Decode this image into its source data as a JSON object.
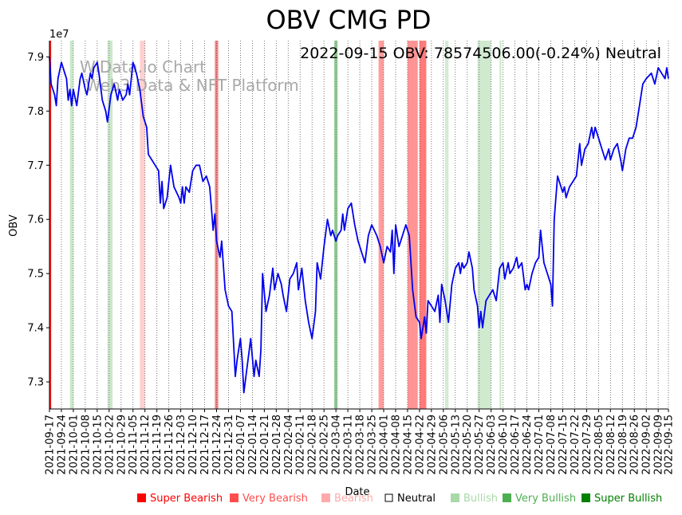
{
  "chart_data": {
    "type": "line",
    "title": "OBV CMG PD",
    "xlabel": "Date",
    "ylabel": "OBV",
    "y_offset_label": "1e7",
    "annotation": "2022-09-15 OBV: 78574506.00(-0.24%) Neutral",
    "watermark_lines": [
      "WiData.io Chart",
      "Web3 Data & NFT Platform"
    ],
    "grid": "vertical dotted",
    "ylim": [
      7.25,
      7.93
    ],
    "yticks": [
      7.3,
      7.4,
      7.5,
      7.6,
      7.7,
      7.8,
      7.9
    ],
    "xlim": [
      "2021-09-17",
      "2022-09-15"
    ],
    "xticks": [
      "2021-09-17",
      "2021-09-24",
      "2021-10-01",
      "2021-10-08",
      "2021-10-15",
      "2021-10-22",
      "2021-10-29",
      "2021-11-05",
      "2021-11-12",
      "2021-11-19",
      "2021-11-26",
      "2021-12-03",
      "2021-12-10",
      "2021-12-17",
      "2021-12-24",
      "2021-12-31",
      "2022-01-07",
      "2022-01-14",
      "2022-01-21",
      "2022-01-28",
      "2022-02-04",
      "2022-02-11",
      "2022-02-18",
      "2022-02-25",
      "2022-03-04",
      "2022-03-11",
      "2022-03-18",
      "2022-03-25",
      "2022-04-01",
      "2022-04-08",
      "2022-04-15",
      "2022-04-22",
      "2022-04-29",
      "2022-05-06",
      "2022-05-13",
      "2022-05-20",
      "2022-05-27",
      "2022-06-03",
      "2022-06-10",
      "2022-06-17",
      "2022-06-24",
      "2022-07-01",
      "2022-07-08",
      "2022-07-15",
      "2022-07-22",
      "2022-07-29",
      "2022-08-05",
      "2022-08-12",
      "2022-08-19",
      "2022-08-26",
      "2022-09-02",
      "2022-09-09",
      "2022-09-15"
    ],
    "series": [
      {
        "color": "#0000ee",
        "points": [
          [
            "2021-09-17",
            7.9
          ],
          [
            "2021-09-18",
            7.85
          ],
          [
            "2021-09-20",
            7.83
          ],
          [
            "2021-09-21",
            7.81
          ],
          [
            "2021-09-22",
            7.86
          ],
          [
            "2021-09-24",
            7.89
          ],
          [
            "2021-09-26",
            7.87
          ],
          [
            "2021-09-27",
            7.86
          ],
          [
            "2021-09-28",
            7.82
          ],
          [
            "2021-09-29",
            7.84
          ],
          [
            "2021-09-30",
            7.81
          ],
          [
            "2021-10-01",
            7.84
          ],
          [
            "2021-10-03",
            7.81
          ],
          [
            "2021-10-05",
            7.86
          ],
          [
            "2021-10-06",
            7.87
          ],
          [
            "2021-10-08",
            7.84
          ],
          [
            "2021-10-09",
            7.83
          ],
          [
            "2021-10-11",
            7.87
          ],
          [
            "2021-10-12",
            7.86
          ],
          [
            "2021-10-13",
            7.88
          ],
          [
            "2021-10-15",
            7.89
          ],
          [
            "2021-10-16",
            7.87
          ],
          [
            "2021-10-18",
            7.82
          ],
          [
            "2021-10-20",
            7.8
          ],
          [
            "2021-10-21",
            7.78
          ],
          [
            "2021-10-23",
            7.83
          ],
          [
            "2021-10-25",
            7.85
          ],
          [
            "2021-10-27",
            7.82
          ],
          [
            "2021-10-28",
            7.84
          ],
          [
            "2021-10-30",
            7.82
          ],
          [
            "2021-11-01",
            7.83
          ],
          [
            "2021-11-02",
            7.85
          ],
          [
            "2021-11-03",
            7.83
          ],
          [
            "2021-11-05",
            7.89
          ],
          [
            "2021-11-07",
            7.87
          ],
          [
            "2021-11-09",
            7.84
          ],
          [
            "2021-11-11",
            7.79
          ],
          [
            "2021-11-13",
            7.77
          ],
          [
            "2021-11-14",
            7.72
          ],
          [
            "2021-11-16",
            7.71
          ],
          [
            "2021-11-18",
            7.7
          ],
          [
            "2021-11-20",
            7.69
          ],
          [
            "2021-11-21",
            7.63
          ],
          [
            "2021-11-22",
            7.67
          ],
          [
            "2021-11-23",
            7.62
          ],
          [
            "2021-11-25",
            7.64
          ],
          [
            "2021-11-27",
            7.7
          ],
          [
            "2021-11-29",
            7.66
          ],
          [
            "2021-12-02",
            7.64
          ],
          [
            "2021-12-03",
            7.63
          ],
          [
            "2021-12-04",
            7.66
          ],
          [
            "2021-12-05",
            7.63
          ],
          [
            "2021-12-06",
            7.66
          ],
          [
            "2021-12-08",
            7.65
          ],
          [
            "2021-12-10",
            7.69
          ],
          [
            "2021-12-12",
            7.7
          ],
          [
            "2021-12-14",
            7.7
          ],
          [
            "2021-12-16",
            7.67
          ],
          [
            "2021-12-18",
            7.68
          ],
          [
            "2021-12-20",
            7.66
          ],
          [
            "2021-12-21",
            7.62
          ],
          [
            "2021-12-22",
            7.58
          ],
          [
            "2021-12-23",
            7.61
          ],
          [
            "2021-12-24",
            7.56
          ],
          [
            "2021-12-26",
            7.53
          ],
          [
            "2021-12-27",
            7.56
          ],
          [
            "2021-12-29",
            7.47
          ],
          [
            "2021-12-31",
            7.44
          ],
          [
            "2022-01-02",
            7.43
          ],
          [
            "2022-01-03",
            7.37
          ],
          [
            "2022-01-04",
            7.31
          ],
          [
            "2022-01-05",
            7.34
          ],
          [
            "2022-01-07",
            7.38
          ],
          [
            "2022-01-08",
            7.34
          ],
          [
            "2022-01-09",
            7.28
          ],
          [
            "2022-01-11",
            7.33
          ],
          [
            "2022-01-13",
            7.38
          ],
          [
            "2022-01-15",
            7.31
          ],
          [
            "2022-01-16",
            7.34
          ],
          [
            "2022-01-18",
            7.31
          ],
          [
            "2022-01-19",
            7.36
          ],
          [
            "2022-01-20",
            7.5
          ],
          [
            "2022-01-22",
            7.43
          ],
          [
            "2022-01-24",
            7.46
          ],
          [
            "2022-01-26",
            7.51
          ],
          [
            "2022-01-27",
            7.47
          ],
          [
            "2022-01-29",
            7.5
          ],
          [
            "2022-01-31",
            7.48
          ],
          [
            "2022-02-01",
            7.46
          ],
          [
            "2022-02-03",
            7.43
          ],
          [
            "2022-02-05",
            7.49
          ],
          [
            "2022-02-07",
            7.5
          ],
          [
            "2022-02-09",
            7.52
          ],
          [
            "2022-02-10",
            7.47
          ],
          [
            "2022-02-12",
            7.51
          ],
          [
            "2022-02-14",
            7.45
          ],
          [
            "2022-02-16",
            7.41
          ],
          [
            "2022-02-18",
            7.38
          ],
          [
            "2022-02-20",
            7.43
          ],
          [
            "2022-02-21",
            7.52
          ],
          [
            "2022-02-23",
            7.49
          ],
          [
            "2022-02-25",
            7.55
          ],
          [
            "2022-02-27",
            7.6
          ],
          [
            "2022-03-01",
            7.57
          ],
          [
            "2022-03-02",
            7.58
          ],
          [
            "2022-03-04",
            7.56
          ],
          [
            "2022-03-05",
            7.57
          ],
          [
            "2022-03-07",
            7.58
          ],
          [
            "2022-03-08",
            7.61
          ],
          [
            "2022-03-09",
            7.58
          ],
          [
            "2022-03-11",
            7.62
          ],
          [
            "2022-03-13",
            7.63
          ],
          [
            "2022-03-15",
            7.59
          ],
          [
            "2022-03-17",
            7.56
          ],
          [
            "2022-03-19",
            7.54
          ],
          [
            "2022-03-21",
            7.52
          ],
          [
            "2022-03-23",
            7.57
          ],
          [
            "2022-03-25",
            7.59
          ],
          [
            "2022-03-28",
            7.57
          ],
          [
            "2022-03-30",
            7.55
          ],
          [
            "2022-04-01",
            7.52
          ],
          [
            "2022-04-03",
            7.55
          ],
          [
            "2022-04-05",
            7.54
          ],
          [
            "2022-04-06",
            7.58
          ],
          [
            "2022-04-07",
            7.5
          ],
          [
            "2022-04-08",
            7.59
          ],
          [
            "2022-04-10",
            7.55
          ],
          [
            "2022-04-12",
            7.57
          ],
          [
            "2022-04-14",
            7.59
          ],
          [
            "2022-04-16",
            7.57
          ],
          [
            "2022-04-18",
            7.47
          ],
          [
            "2022-04-20",
            7.42
          ],
          [
            "2022-04-22",
            7.41
          ],
          [
            "2022-04-23",
            7.38
          ],
          [
            "2022-04-25",
            7.42
          ],
          [
            "2022-04-26",
            7.39
          ],
          [
            "2022-04-27",
            7.45
          ],
          [
            "2022-04-29",
            7.44
          ],
          [
            "2022-05-01",
            7.43
          ],
          [
            "2022-05-03",
            7.46
          ],
          [
            "2022-05-04",
            7.41
          ],
          [
            "2022-05-05",
            7.48
          ],
          [
            "2022-05-07",
            7.45
          ],
          [
            "2022-05-09",
            7.41
          ],
          [
            "2022-05-11",
            7.48
          ],
          [
            "2022-05-13",
            7.51
          ],
          [
            "2022-05-15",
            7.52
          ],
          [
            "2022-05-16",
            7.5
          ],
          [
            "2022-05-17",
            7.52
          ],
          [
            "2022-05-18",
            7.51
          ],
          [
            "2022-05-20",
            7.52
          ],
          [
            "2022-05-21",
            7.54
          ],
          [
            "2022-05-23",
            7.51
          ],
          [
            "2022-05-24",
            7.47
          ],
          [
            "2022-05-26",
            7.44
          ],
          [
            "2022-05-27",
            7.4
          ],
          [
            "2022-05-28",
            7.43
          ],
          [
            "2022-05-29",
            7.4
          ],
          [
            "2022-05-31",
            7.45
          ],
          [
            "2022-06-02",
            7.46
          ],
          [
            "2022-06-04",
            7.47
          ],
          [
            "2022-06-06",
            7.45
          ],
          [
            "2022-06-08",
            7.51
          ],
          [
            "2022-06-10",
            7.52
          ],
          [
            "2022-06-11",
            7.49
          ],
          [
            "2022-06-13",
            7.52
          ],
          [
            "2022-06-14",
            7.5
          ],
          [
            "2022-06-16",
            7.51
          ],
          [
            "2022-06-18",
            7.53
          ],
          [
            "2022-06-19",
            7.51
          ],
          [
            "2022-06-21",
            7.52
          ],
          [
            "2022-06-23",
            7.47
          ],
          [
            "2022-06-24",
            7.48
          ],
          [
            "2022-06-25",
            7.47
          ],
          [
            "2022-06-27",
            7.5
          ],
          [
            "2022-06-29",
            7.52
          ],
          [
            "2022-07-01",
            7.53
          ],
          [
            "2022-07-02",
            7.58
          ],
          [
            "2022-07-04",
            7.52
          ],
          [
            "2022-07-06",
            7.5
          ],
          [
            "2022-07-08",
            7.48
          ],
          [
            "2022-07-09",
            7.44
          ],
          [
            "2022-07-10",
            7.6
          ],
          [
            "2022-07-12",
            7.68
          ],
          [
            "2022-07-14",
            7.66
          ],
          [
            "2022-07-15",
            7.65
          ],
          [
            "2022-07-16",
            7.66
          ],
          [
            "2022-07-17",
            7.64
          ],
          [
            "2022-07-19",
            7.66
          ],
          [
            "2022-07-21",
            7.67
          ],
          [
            "2022-07-23",
            7.68
          ],
          [
            "2022-07-25",
            7.74
          ],
          [
            "2022-07-26",
            7.7
          ],
          [
            "2022-07-28",
            7.73
          ],
          [
            "2022-07-30",
            7.74
          ],
          [
            "2022-08-01",
            7.77
          ],
          [
            "2022-08-02",
            7.75
          ],
          [
            "2022-08-03",
            7.77
          ],
          [
            "2022-08-05",
            7.75
          ],
          [
            "2022-08-07",
            7.73
          ],
          [
            "2022-08-09",
            7.71
          ],
          [
            "2022-08-11",
            7.73
          ],
          [
            "2022-08-12",
            7.71
          ],
          [
            "2022-08-14",
            7.73
          ],
          [
            "2022-08-16",
            7.74
          ],
          [
            "2022-08-18",
            7.71
          ],
          [
            "2022-08-19",
            7.69
          ],
          [
            "2022-08-21",
            7.73
          ],
          [
            "2022-08-23",
            7.75
          ],
          [
            "2022-08-25",
            7.75
          ],
          [
            "2022-08-27",
            7.77
          ],
          [
            "2022-08-29",
            7.81
          ],
          [
            "2022-08-31",
            7.85
          ],
          [
            "2022-09-02",
            7.86
          ],
          [
            "2022-09-05",
            7.87
          ],
          [
            "2022-09-07",
            7.85
          ],
          [
            "2022-09-09",
            7.88
          ],
          [
            "2022-09-11",
            7.87
          ],
          [
            "2022-09-13",
            7.86
          ],
          [
            "2022-09-14",
            7.88
          ],
          [
            "2022-09-15",
            7.86
          ]
        ]
      }
    ],
    "bands": [
      {
        "start": "2021-09-17",
        "end": "2021-09-18",
        "color": "#ff0000",
        "opacity": 0.9
      },
      {
        "start": "2021-09-29",
        "end": "2021-10-01",
        "color": "#a9d8a9",
        "opacity": 0.6
      },
      {
        "start": "2021-10-21",
        "end": "2021-10-24",
        "color": "#a9d8a9",
        "opacity": 0.6
      },
      {
        "start": "2021-11-09",
        "end": "2021-11-12",
        "color": "#ffaaaa",
        "opacity": 0.55
      },
      {
        "start": "2021-12-23",
        "end": "2021-12-25",
        "color": "#ff4d4d",
        "opacity": 0.7
      },
      {
        "start": "2022-03-03",
        "end": "2022-03-05",
        "color": "#4caf50",
        "opacity": 0.6
      },
      {
        "start": "2022-03-29",
        "end": "2022-04-01",
        "color": "#ff4d4d",
        "opacity": 0.55
      },
      {
        "start": "2022-04-15",
        "end": "2022-04-21",
        "color": "#ff4d4d",
        "opacity": 0.6
      },
      {
        "start": "2022-04-22",
        "end": "2022-04-26",
        "color": "#ff4d4d",
        "opacity": 0.75
      },
      {
        "start": "2022-05-07",
        "end": "2022-05-09",
        "color": "#a9d8a9",
        "opacity": 0.5
      },
      {
        "start": "2022-05-26",
        "end": "2022-06-03",
        "color": "#a9d8a9",
        "opacity": 0.55
      },
      {
        "start": "2022-06-08",
        "end": "2022-06-09",
        "color": "#a9d8a9",
        "opacity": 0.6
      }
    ]
  },
  "legend": [
    {
      "label": "Super Bearish",
      "color": "#ff0000"
    },
    {
      "label": "Very Bearish",
      "color": "#ff4d4d"
    },
    {
      "label": "Bearish",
      "color": "#ffaaaa"
    },
    {
      "label": "Neutral",
      "color": "#000000",
      "hollow": true
    },
    {
      "label": "Bullish",
      "color": "#a9d8a9"
    },
    {
      "label": "Very Bullish",
      "color": "#4caf50"
    },
    {
      "label": "Super Bullish",
      "color": "#008000"
    }
  ]
}
